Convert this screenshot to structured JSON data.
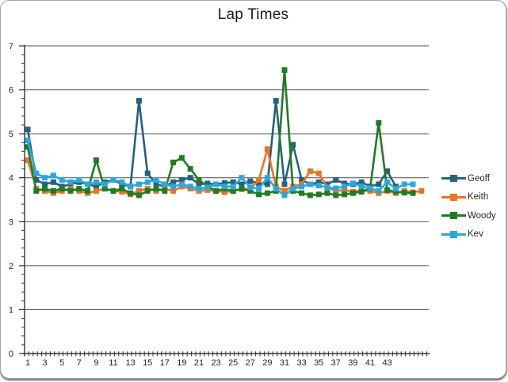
{
  "chart_data": {
    "type": "line",
    "title": "Lap Times",
    "xlabel": "",
    "ylabel": "",
    "ylim": [
      0,
      7
    ],
    "y_tick_labels": [
      "0",
      "1",
      "2",
      "3",
      "4",
      "5",
      "6",
      "7"
    ],
    "y_minor_tick_interval": 0.2,
    "x_tick_labels": [
      "1",
      "3",
      "5",
      "7",
      "9",
      "11",
      "13",
      "15",
      "17",
      "19",
      "21",
      "23",
      "25",
      "27",
      "29",
      "31",
      "33",
      "35",
      "37",
      "39",
      "41",
      "43"
    ],
    "x_label_step": 2,
    "grid": "horizontal",
    "legend_position": "right",
    "series": [
      {
        "name": "Geoff",
        "color": "#26617F",
        "values": [
          5.1,
          3.95,
          3.85,
          3.9,
          3.8,
          3.85,
          3.9,
          3.85,
          3.8,
          3.9,
          3.95,
          3.85,
          3.8,
          5.75,
          4.1,
          3.85,
          3.8,
          3.9,
          3.95,
          4.0,
          3.85,
          3.87,
          3.85,
          3.88,
          3.9,
          3.85,
          3.92,
          3.88,
          3.85,
          5.75,
          3.85,
          4.75,
          3.95,
          3.85,
          3.9,
          3.85,
          3.95,
          3.87,
          3.85,
          3.9,
          3.8,
          3.85,
          4.15,
          3.8
        ]
      },
      {
        "name": "Keith",
        "color": "#E87424",
        "values": [
          4.4,
          3.75,
          3.7,
          3.65,
          3.7,
          3.75,
          3.7,
          3.65,
          3.7,
          3.75,
          3.7,
          3.68,
          3.62,
          3.7,
          3.75,
          3.7,
          3.75,
          3.7,
          3.8,
          3.75,
          3.7,
          3.72,
          3.7,
          3.67,
          3.7,
          3.74,
          3.75,
          3.95,
          4.65,
          3.8,
          3.7,
          3.8,
          3.85,
          4.15,
          4.1,
          3.78,
          3.7,
          3.72,
          3.68,
          3.72,
          3.7,
          3.65,
          3.7,
          3.65,
          3.7,
          3.67,
          3.7
        ]
      },
      {
        "name": "Woody",
        "color": "#1E7D23",
        "values": [
          4.7,
          3.7,
          3.75,
          3.7,
          3.75,
          3.7,
          3.75,
          3.7,
          4.4,
          3.75,
          3.7,
          3.75,
          3.65,
          3.6,
          3.7,
          3.75,
          3.7,
          4.35,
          4.45,
          4.2,
          3.95,
          3.8,
          3.7,
          3.75,
          3.7,
          3.75,
          3.7,
          3.62,
          3.65,
          3.7,
          6.45,
          3.7,
          3.65,
          3.6,
          3.62,
          3.65,
          3.6,
          3.62,
          3.65,
          3.68,
          3.75,
          5.25,
          3.72,
          3.68,
          3.66,
          3.65
        ]
      },
      {
        "name": "Kev",
        "color": "#2CA7DD",
        "values": [
          4.85,
          4.1,
          4.0,
          4.05,
          3.95,
          3.9,
          3.95,
          3.85,
          3.9,
          3.85,
          3.95,
          3.9,
          3.8,
          3.85,
          3.9,
          3.95,
          3.85,
          3.8,
          3.85,
          3.8,
          3.75,
          3.78,
          3.85,
          3.8,
          3.8,
          4.0,
          3.78,
          3.75,
          4.0,
          3.75,
          3.6,
          3.75,
          3.8,
          3.85,
          3.82,
          3.78,
          3.76,
          3.8,
          3.87,
          3.8,
          3.76,
          3.7,
          3.9,
          3.75,
          3.85,
          3.85
        ]
      }
    ]
  },
  "colors": {
    "axis": "#333333",
    "gridline": "#4D4D4D",
    "tick": "#333333",
    "text": "#262626",
    "title": "#1A1A1A",
    "background": "#FFFFFF"
  }
}
